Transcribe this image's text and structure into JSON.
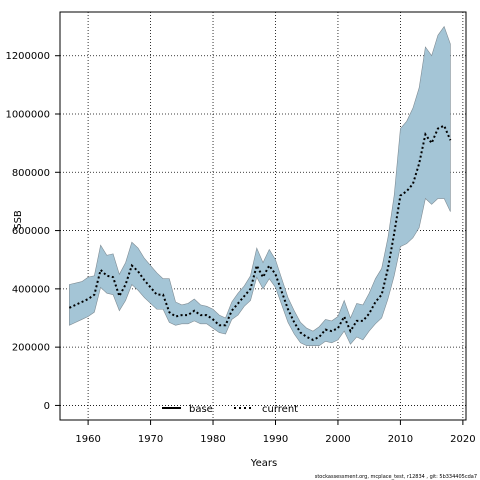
{
  "footer": "stockassessment.org, mcplace_test, r12834 , git: 5b334405cda7",
  "chart_data": {
    "type": "line",
    "title": "",
    "xlabel": "Years",
    "ylabel": "SSB",
    "xlim": [
      1955.5,
      2020.5
    ],
    "ylim": [
      -50000,
      1350000
    ],
    "xticks": [
      1960,
      1970,
      1980,
      1990,
      2000,
      2010,
      2020
    ],
    "xtick_labels": [
      "1960",
      "1970",
      "1980",
      "1990",
      "2000",
      "2010",
      "2020"
    ],
    "yticks": [
      0,
      200000,
      400000,
      600000,
      800000,
      1000000,
      1200000
    ],
    "ytick_labels": [
      "0",
      "200000",
      "400000",
      "600000",
      "800000",
      "1000000",
      "1200000"
    ],
    "grid": true,
    "legend": {
      "placement": "bottom-center",
      "entries": [
        "base",
        "current"
      ]
    },
    "x": [
      1957,
      1958,
      1959,
      1960,
      1961,
      1962,
      1963,
      1964,
      1965,
      1966,
      1967,
      1968,
      1969,
      1970,
      1971,
      1972,
      1973,
      1974,
      1975,
      1976,
      1977,
      1978,
      1979,
      1980,
      1981,
      1982,
      1983,
      1984,
      1985,
      1986,
      1987,
      1988,
      1989,
      1990,
      1991,
      1992,
      1993,
      1994,
      1995,
      1996,
      1997,
      1998,
      1999,
      2000,
      2001,
      2002,
      2003,
      2004,
      2005,
      2006,
      2007,
      2008,
      2009,
      2010,
      2011,
      2012,
      2013,
      2014,
      2015,
      2016,
      2017,
      2018
    ],
    "series": [
      {
        "name": "current",
        "style": "dotted",
        "color": "#000000",
        "values": [
          335000,
          345000,
          355000,
          365000,
          380000,
          465000,
          445000,
          440000,
          375000,
          415000,
          480000,
          460000,
          430000,
          405000,
          380000,
          380000,
          320000,
          305000,
          310000,
          310000,
          325000,
          310000,
          310000,
          295000,
          275000,
          275000,
          325000,
          350000,
          375000,
          400000,
          480000,
          440000,
          480000,
          450000,
          390000,
          330000,
          285000,
          250000,
          235000,
          225000,
          235000,
          260000,
          255000,
          265000,
          305000,
          255000,
          290000,
          290000,
          315000,
          355000,
          380000,
          470000,
          590000,
          720000,
          735000,
          760000,
          830000,
          930000,
          900000,
          950000,
          960000,
          910000
        ],
        "ci_lower": [
          275000,
          285000,
          295000,
          305000,
          320000,
          405000,
          385000,
          380000,
          325000,
          360000,
          415000,
          395000,
          370000,
          350000,
          330000,
          330000,
          285000,
          275000,
          280000,
          280000,
          290000,
          280000,
          280000,
          265000,
          250000,
          245000,
          295000,
          310000,
          340000,
          360000,
          440000,
          400000,
          435000,
          405000,
          345000,
          285000,
          245000,
          215000,
          205000,
          205000,
          205000,
          220000,
          215000,
          225000,
          255000,
          210000,
          235000,
          225000,
          255000,
          280000,
          300000,
          365000,
          445000,
          545000,
          555000,
          575000,
          610000,
          710000,
          690000,
          710000,
          710000,
          665000
        ],
        "ci_upper": [
          415000,
          420000,
          425000,
          440000,
          445000,
          550000,
          515000,
          520000,
          450000,
          490000,
          560000,
          540000,
          505000,
          480000,
          455000,
          435000,
          435000,
          355000,
          345000,
          350000,
          365000,
          345000,
          340000,
          330000,
          310000,
          300000,
          355000,
          385000,
          410000,
          445000,
          540000,
          490000,
          535000,
          500000,
          435000,
          370000,
          325000,
          285000,
          265000,
          255000,
          270000,
          295000,
          290000,
          305000,
          360000,
          300000,
          350000,
          345000,
          385000,
          435000,
          470000,
          575000,
          720000,
          950000,
          975000,
          1020000,
          1090000,
          1230000,
          1200000,
          1270000,
          1300000,
          1240000
        ]
      }
    ],
    "colors": {
      "band": "#a4c5d6",
      "band_edge": "#7f8c94",
      "line": "#000000",
      "base_line": "#000000",
      "frame": "#000000",
      "grid": "#000000"
    }
  }
}
